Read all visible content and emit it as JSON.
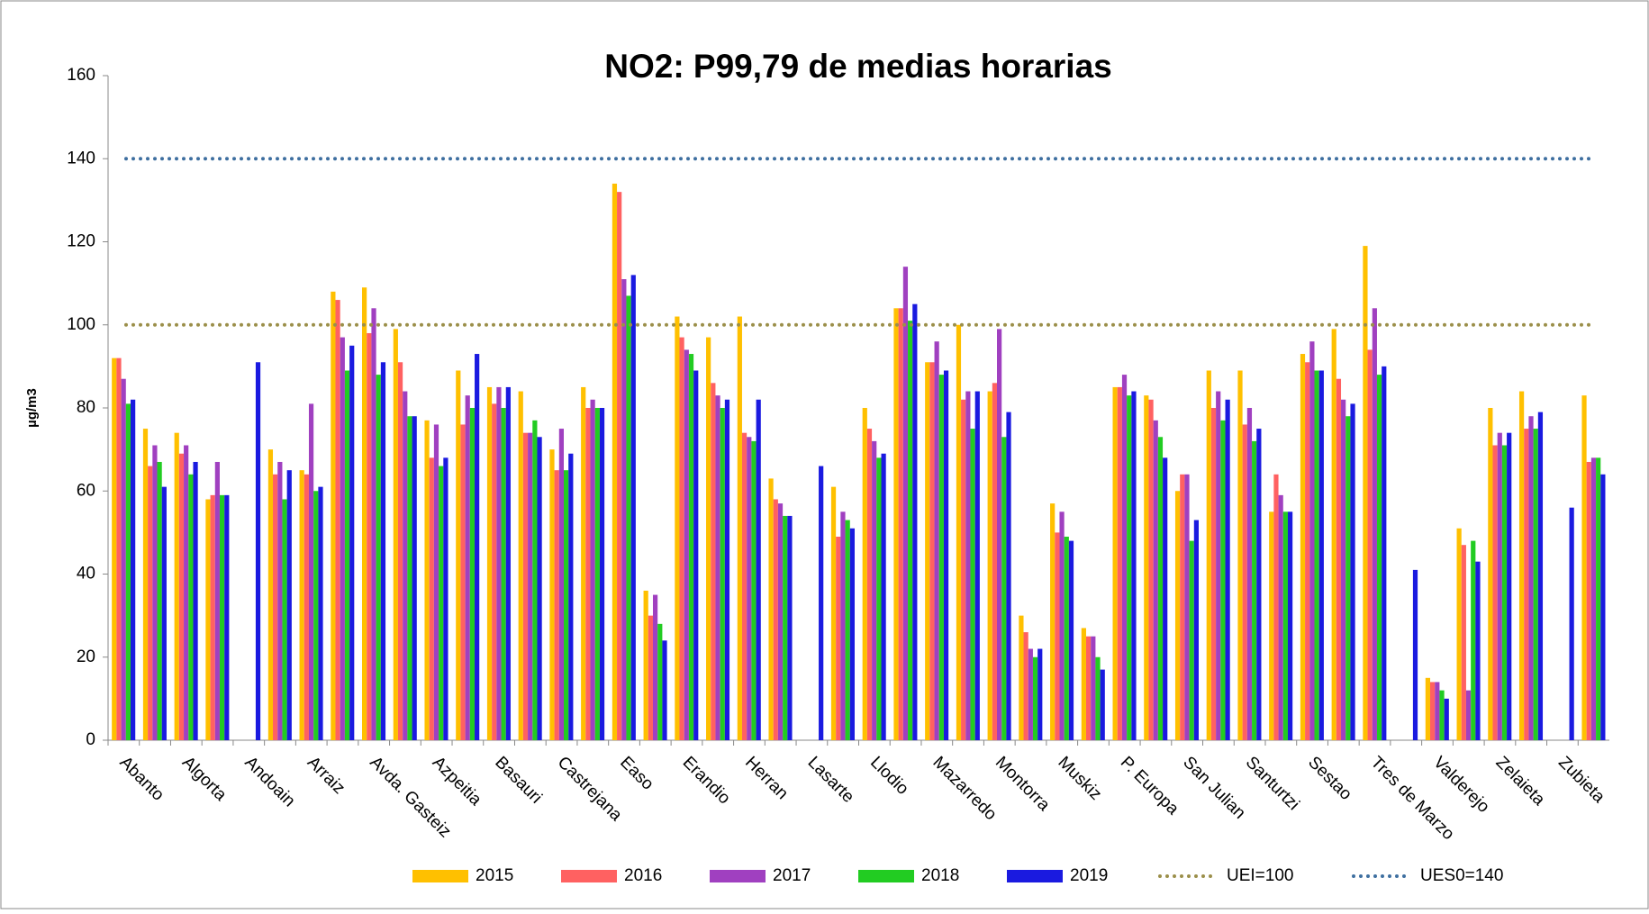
{
  "chart_data": {
    "type": "bar",
    "title": "NO2: P99,79 de medias horarias",
    "y_label": "µg/m3",
    "categories": [
      "Abanto",
      null,
      "Algorta",
      null,
      "Andoain",
      null,
      "Arraiz",
      null,
      "Avda. Gasteiz",
      null,
      "Azpeitia",
      null,
      "Basauri",
      null,
      "Castrejana",
      null,
      "Easo",
      null,
      "Erandio",
      null,
      "Herran",
      null,
      "Lasarte",
      null,
      "Llodio",
      null,
      "Mazarredo",
      null,
      "Montorra",
      null,
      "Muskiz",
      null,
      "P. Europa",
      null,
      "San Julian",
      null,
      "Santurtzi",
      null,
      "Sestao",
      null,
      "Tres de Marzo",
      null,
      "Valderejo",
      null,
      "Zelaieta",
      null,
      "Zubieta",
      null
    ],
    "series": [
      {
        "name": "2015",
        "color": "#ffc000",
        "values": [
          92,
          75,
          74,
          58,
          null,
          70,
          65,
          108,
          109,
          99,
          77,
          89,
          85,
          84,
          70,
          85,
          134,
          36,
          102,
          97,
          102,
          63,
          null,
          61,
          80,
          104,
          91,
          100,
          84,
          30,
          57,
          27,
          85,
          83,
          60,
          89,
          89,
          55,
          93,
          99,
          119,
          null,
          15,
          51,
          80,
          84,
          null,
          83
        ]
      },
      {
        "name": "2016",
        "color": "#ff6161",
        "values": [
          92,
          66,
          69,
          59,
          null,
          64,
          64,
          106,
          98,
          91,
          68,
          76,
          81,
          74,
          65,
          80,
          132,
          30,
          97,
          86,
          74,
          58,
          null,
          49,
          75,
          104,
          91,
          82,
          86,
          26,
          50,
          25,
          85,
          82,
          64,
          80,
          76,
          64,
          91,
          87,
          94,
          null,
          14,
          47,
          71,
          75,
          null,
          67
        ]
      },
      {
        "name": "2017",
        "color": "#a040c0",
        "values": [
          87,
          71,
          71,
          67,
          null,
          67,
          81,
          97,
          104,
          84,
          76,
          83,
          85,
          74,
          75,
          82,
          111,
          35,
          94,
          83,
          73,
          57,
          null,
          55,
          72,
          114,
          96,
          84,
          99,
          22,
          55,
          25,
          88,
          77,
          64,
          84,
          80,
          59,
          96,
          82,
          104,
          null,
          14,
          12,
          74,
          78,
          null,
          68
        ]
      },
      {
        "name": "2018",
        "color": "#22cc22",
        "values": [
          81,
          67,
          64,
          59,
          null,
          58,
          60,
          89,
          88,
          78,
          66,
          80,
          80,
          77,
          65,
          80,
          107,
          28,
          93,
          80,
          72,
          54,
          null,
          53,
          68,
          101,
          88,
          75,
          73,
          20,
          49,
          20,
          83,
          73,
          48,
          77,
          72,
          55,
          89,
          78,
          88,
          null,
          12,
          48,
          71,
          75,
          null,
          68
        ]
      },
      {
        "name": "2019",
        "color": "#1a1ae0",
        "values": [
          82,
          61,
          67,
          59,
          91,
          65,
          61,
          95,
          91,
          78,
          68,
          93,
          85,
          73,
          69,
          80,
          112,
          24,
          89,
          82,
          82,
          54,
          66,
          51,
          69,
          105,
          89,
          84,
          79,
          22,
          48,
          17,
          84,
          68,
          53,
          82,
          75,
          55,
          89,
          81,
          90,
          41,
          10,
          43,
          74,
          79,
          56,
          64
        ]
      }
    ],
    "reference_lines": [
      {
        "name": "UEI=100",
        "value": 100,
        "color": "#9b8f4a"
      },
      {
        "name": "UES0=140",
        "value": 140,
        "color": "#3e6fa0"
      }
    ],
    "ylim": [
      0,
      160
    ],
    "yticks": [
      0,
      20,
      40,
      60,
      80,
      100,
      120,
      140,
      160
    ]
  }
}
